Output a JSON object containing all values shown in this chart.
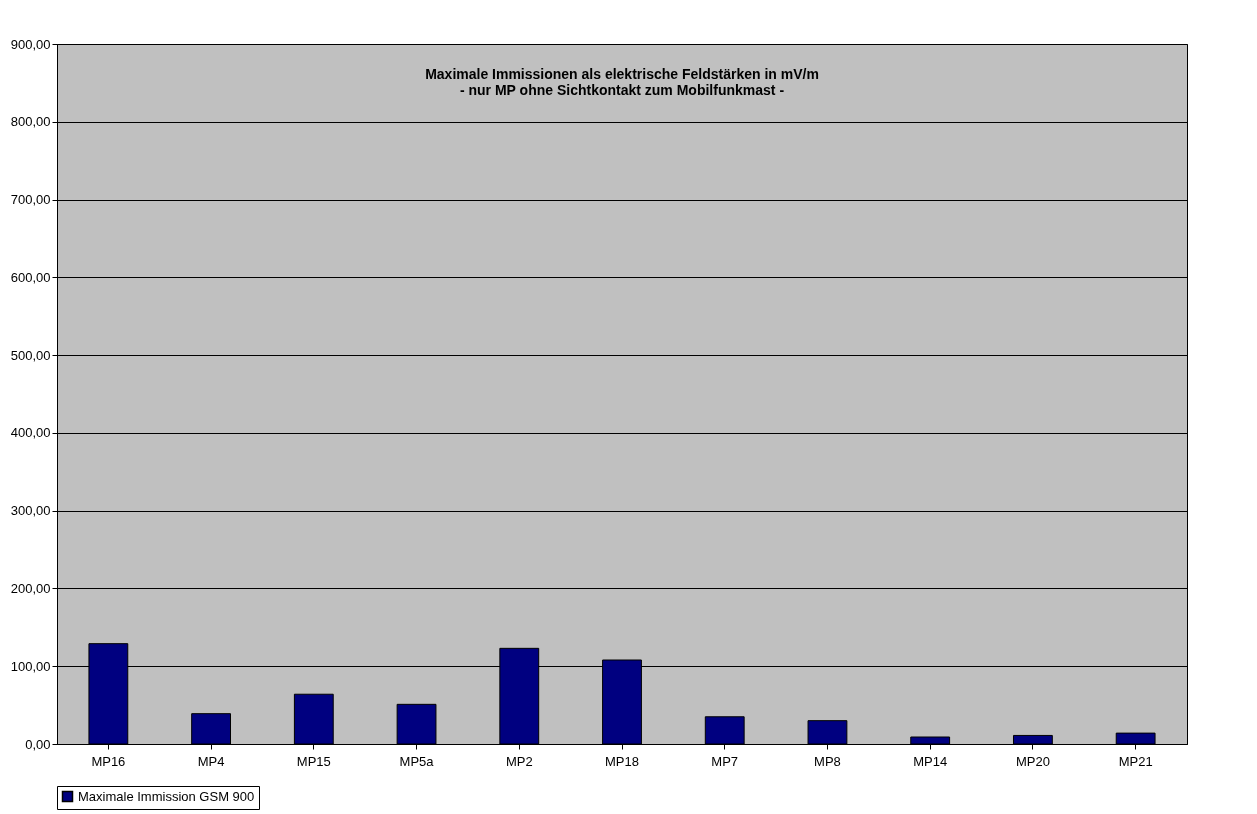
{
  "chart_data": {
    "type": "bar",
    "title": [
      "Maximale Immissionen als elektrische Feldstärken in mV/m",
      "- nur MP ohne Sichtkontakt zum Mobilfunkmast -"
    ],
    "categories": [
      "MP16",
      "MP4",
      "MP15",
      "MP5a",
      "MP2",
      "MP18",
      "MP7",
      "MP8",
      "MP14",
      "MP20",
      "MP21"
    ],
    "series": [
      {
        "name": "Maximale Immission GSM 900",
        "color": "#000080",
        "values": [
          129,
          39,
          64,
          51,
          123,
          108,
          35,
          30,
          9,
          11,
          14
        ]
      }
    ],
    "ylim": [
      0,
      900
    ],
    "yticks": [
      {
        "value": 0,
        "label": "0,00"
      },
      {
        "value": 100,
        "label": "100,00"
      },
      {
        "value": 200,
        "label": "200,00"
      },
      {
        "value": 300,
        "label": "300,00"
      },
      {
        "value": 400,
        "label": "400,00"
      },
      {
        "value": 500,
        "label": "500,00"
      },
      {
        "value": 600,
        "label": "600,00"
      },
      {
        "value": 700,
        "label": "700,00"
      },
      {
        "value": 800,
        "label": "800,00"
      },
      {
        "value": 900,
        "label": "900,00"
      }
    ],
    "grid": "y",
    "legend": "bottom"
  }
}
